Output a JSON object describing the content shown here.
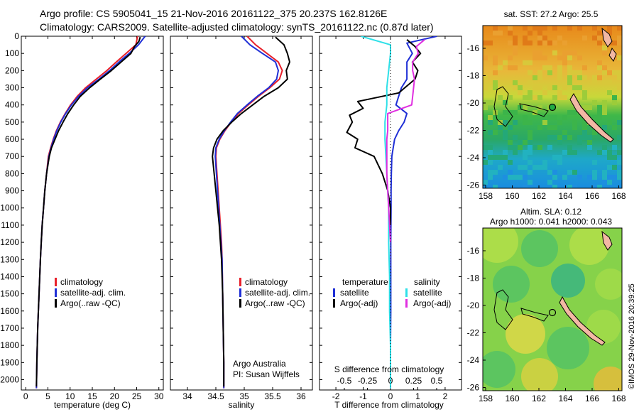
{
  "header": {
    "line1": "Argo profile: CS 5905041_15 21-Nov-2016 20161122_375 20.237S 162.8126E",
    "line2": "Climatology: CARS2009. Satellite-adjusted climatology: synTS_20161122.nc (0.87d later)"
  },
  "colors": {
    "climatology": "#e8202a",
    "satellite": "#1f2fd6",
    "argo": "#000000",
    "salinity_sat": "#2ee0e8",
    "salinity_argo": "#e02fe0"
  },
  "chart_data": [
    {
      "type": "line",
      "name": "temperature",
      "xlabel": "temperature (deg C)",
      "ylabel": "",
      "xlim": [
        -1,
        31
      ],
      "ylim": [
        2060,
        0
      ],
      "x_ticks": [
        "0",
        "5",
        "10",
        "15",
        "20",
        "25",
        "30"
      ],
      "y_ticks": [
        "0",
        "100",
        "200",
        "300",
        "400",
        "500",
        "600",
        "700",
        "800",
        "900",
        "1000",
        "1100",
        "1200",
        "1300",
        "1400",
        "1500",
        "1600",
        "1700",
        "1800",
        "1900",
        "2000"
      ],
      "legend": [
        "climatology",
        "satellite-adj. clim.",
        "Argo(..raw -QC)"
      ],
      "series": [
        {
          "name": "climatology",
          "x": [
            25.2,
            24.8,
            22.6,
            20.4,
            18.3,
            15.9,
            13.5,
            11.6,
            10.1,
            8.9,
            7.8,
            6.9,
            6.2,
            5.6,
            5.1,
            4.7,
            4.3,
            4.0,
            3.7,
            3.5,
            3.3,
            3.0,
            2.7,
            2.5,
            2.4
          ],
          "y": [
            0,
            50,
            100,
            150,
            200,
            250,
            300,
            350,
            400,
            450,
            500,
            550,
            600,
            650,
            700,
            800,
            900,
            1000,
            1100,
            1200,
            1300,
            1500,
            1700,
            1900,
            2050
          ]
        },
        {
          "name": "satellite-adj. clim.",
          "x": [
            26.9,
            25.4,
            23.3,
            21.0,
            18.9,
            16.5,
            13.9,
            11.9,
            10.3,
            9.0,
            7.9,
            7.0,
            6.3,
            5.7,
            5.2,
            4.7,
            4.3,
            4.0,
            3.7,
            3.5,
            3.3,
            3.0,
            2.7,
            2.5,
            2.4
          ],
          "y": [
            0,
            50,
            100,
            150,
            200,
            250,
            300,
            350,
            400,
            450,
            500,
            550,
            600,
            650,
            700,
            800,
            900,
            1000,
            1100,
            1200,
            1300,
            1500,
            1700,
            1900,
            2050
          ]
        },
        {
          "name": "Argo(..raw -QC)",
          "x": [
            25.8,
            25.5,
            24.5,
            23.7,
            21.5,
            19.3,
            16.8,
            14.4,
            12.3,
            10.8,
            9.5,
            8.4,
            7.4,
            6.6,
            5.8,
            5.3,
            4.7,
            4.3,
            4.0,
            3.7,
            3.5,
            3.3,
            3.0,
            2.7,
            2.5,
            2.4
          ],
          "y": [
            5,
            30,
            60,
            100,
            150,
            200,
            250,
            300,
            350,
            400,
            450,
            500,
            550,
            600,
            650,
            700,
            800,
            900,
            1000,
            1100,
            1200,
            1300,
            1500,
            1700,
            1900,
            2040
          ]
        }
      ]
    },
    {
      "type": "line",
      "name": "salinity",
      "xlabel": "salinity",
      "ylabel": "",
      "xlim": [
        33.7,
        36.2
      ],
      "ylim": [
        2060,
        0
      ],
      "x_ticks": [
        "34",
        "34.5",
        "35",
        "35.5",
        "36"
      ],
      "legend": [
        "climatology",
        "satellite-adj. clim.",
        "Argo(..raw -QC)"
      ],
      "series": [
        {
          "name": "climatology",
          "x": [
            35.05,
            35.2,
            35.4,
            35.6,
            35.67,
            35.62,
            35.45,
            35.25,
            35.07,
            34.9,
            34.77,
            34.66,
            34.57,
            34.51,
            34.5,
            34.52,
            34.54,
            34.56,
            34.58,
            34.6,
            34.61,
            34.62,
            34.63,
            34.64,
            34.64
          ],
          "y": [
            0,
            50,
            100,
            150,
            200,
            250,
            300,
            350,
            400,
            450,
            500,
            550,
            600,
            650,
            700,
            800,
            900,
            1000,
            1100,
            1200,
            1300,
            1500,
            1700,
            1900,
            2050
          ]
        },
        {
          "name": "satellite-adj. clim.",
          "x": [
            34.95,
            35.1,
            35.32,
            35.55,
            35.6,
            35.57,
            35.43,
            35.23,
            35.05,
            34.88,
            34.76,
            34.65,
            34.56,
            34.5,
            34.49,
            34.51,
            34.53,
            34.55,
            34.57,
            34.59,
            34.61,
            34.62,
            34.63,
            34.64,
            34.64
          ],
          "y": [
            0,
            50,
            100,
            150,
            200,
            250,
            300,
            350,
            400,
            450,
            500,
            550,
            600,
            650,
            700,
            800,
            900,
            1000,
            1100,
            1200,
            1300,
            1500,
            1700,
            1900,
            2050
          ]
        },
        {
          "name": "Argo(..raw -QC)",
          "x": [
            35.55,
            35.7,
            35.76,
            35.8,
            35.74,
            35.76,
            35.6,
            35.35,
            35.15,
            34.95,
            34.78,
            34.63,
            34.52,
            34.46,
            34.44,
            34.47,
            34.5,
            34.53,
            34.56,
            34.58,
            34.6,
            34.62,
            34.63,
            34.64,
            34.64
          ],
          "y": [
            5,
            50,
            100,
            150,
            200,
            250,
            300,
            350,
            400,
            450,
            500,
            550,
            600,
            650,
            700,
            800,
            900,
            1000,
            1100,
            1200,
            1300,
            1500,
            1700,
            1900,
            2040
          ]
        }
      ]
    },
    {
      "type": "line",
      "name": "difference",
      "xlabel": "T difference from climatology",
      "subtitle": "S difference from climatology",
      "ylabel": "",
      "xlim": [
        -2.6,
        2.6
      ],
      "ylim": [
        2060,
        0
      ],
      "x_ticks": [
        "-2",
        "-1",
        "0",
        "1",
        "2"
      ],
      "s_ticks": [
        "-0.5",
        "-0.25",
        "0",
        "0.25",
        "0.5"
      ],
      "legend": [
        "temperature",
        "satellite",
        "Argo(-adj)",
        "salinity",
        "satellite",
        "Argo(-adj)"
      ],
      "series": [
        {
          "name": "temperature satellite",
          "x": [
            1.7,
            0.6,
            0.8,
            0.6,
            0.6,
            0.6,
            0.4,
            0.3,
            0.2,
            0.6,
            0.5,
            0.3,
            0.15,
            0.1,
            0.05,
            0.03,
            0.02,
            0.02,
            0.01,
            0.01,
            0.01,
            0,
            0
          ],
          "y": [
            0,
            40,
            100,
            150,
            200,
            250,
            300,
            350,
            400,
            450,
            500,
            550,
            600,
            650,
            700,
            800,
            900,
            1000,
            1200,
            1400,
            1600,
            1800,
            2050
          ]
        },
        {
          "name": "temperature Argo(-adj)",
          "x": [
            0.6,
            0.9,
            1.1,
            0.8,
            1.0,
            0.9,
            0.3,
            -1.2,
            -1.0,
            -1.5,
            -1.4,
            -1.6,
            -1.2,
            -1.3,
            -0.6,
            -0.3,
            -0.1,
            0,
            0
          ],
          "y": [
            20,
            60,
            100,
            150,
            200,
            250,
            330,
            380,
            420,
            460,
            500,
            560,
            600,
            650,
            700,
            800,
            900,
            1000,
            1100
          ]
        },
        {
          "name": "salinity satellite",
          "x": [
            -0.32,
            0,
            0,
            -0.02,
            -0.04,
            -0.04,
            -0.06,
            -0.06,
            -0.05,
            -0.04,
            -0.03,
            -0.02,
            -0.02,
            -0.01,
            -0.01,
            0,
            0
          ],
          "y": [
            0,
            50,
            100,
            200,
            300,
            400,
            500,
            600,
            700,
            800,
            900,
            1000,
            1200,
            1400,
            1600,
            1800,
            2050
          ]
        },
        {
          "name": "salinity Argo(-adj)",
          "x": [
            0.37,
            0.28,
            0.3,
            0.24,
            0.24,
            0.26,
            0.25,
            0.24,
            0.23,
            -0.03,
            -0.03,
            -0.03,
            -0.04,
            -0.04,
            -0.04,
            -0.03,
            -0.02,
            -0.01,
            0
          ],
          "y": [
            20,
            60,
            100,
            150,
            200,
            250,
            300,
            350,
            400,
            450,
            500,
            550,
            600,
            700,
            800,
            900,
            1000,
            1100,
            1200
          ]
        }
      ]
    }
  ],
  "legend_labels": {
    "clim": "climatology",
    "sat": "satellite-adj. clim.",
    "argo": "Argo(..raw -QC)",
    "temperature": "temperature",
    "salinity": "salinity",
    "satellite": "satellite",
    "argo_adj": "Argo(-adj)"
  },
  "credit": {
    "line1": "Argo Australia",
    "line2": "PI: Susan Wijffels"
  },
  "maps": {
    "sst_title": "sat. SST: 27.2  Argo: 25.5",
    "sla_title1": "Altim. SLA: 0.12",
    "sla_title2": "Argo h1000: 0.041 h2000: 0.043",
    "lon_ticks": [
      "158",
      "160",
      "162",
      "164",
      "166",
      "168"
    ],
    "lat_ticks": [
      "-16",
      "-18",
      "-20",
      "-22",
      "-24",
      "-26"
    ],
    "footer": "©IMOS 29-Nov-2016 20:39:25"
  }
}
